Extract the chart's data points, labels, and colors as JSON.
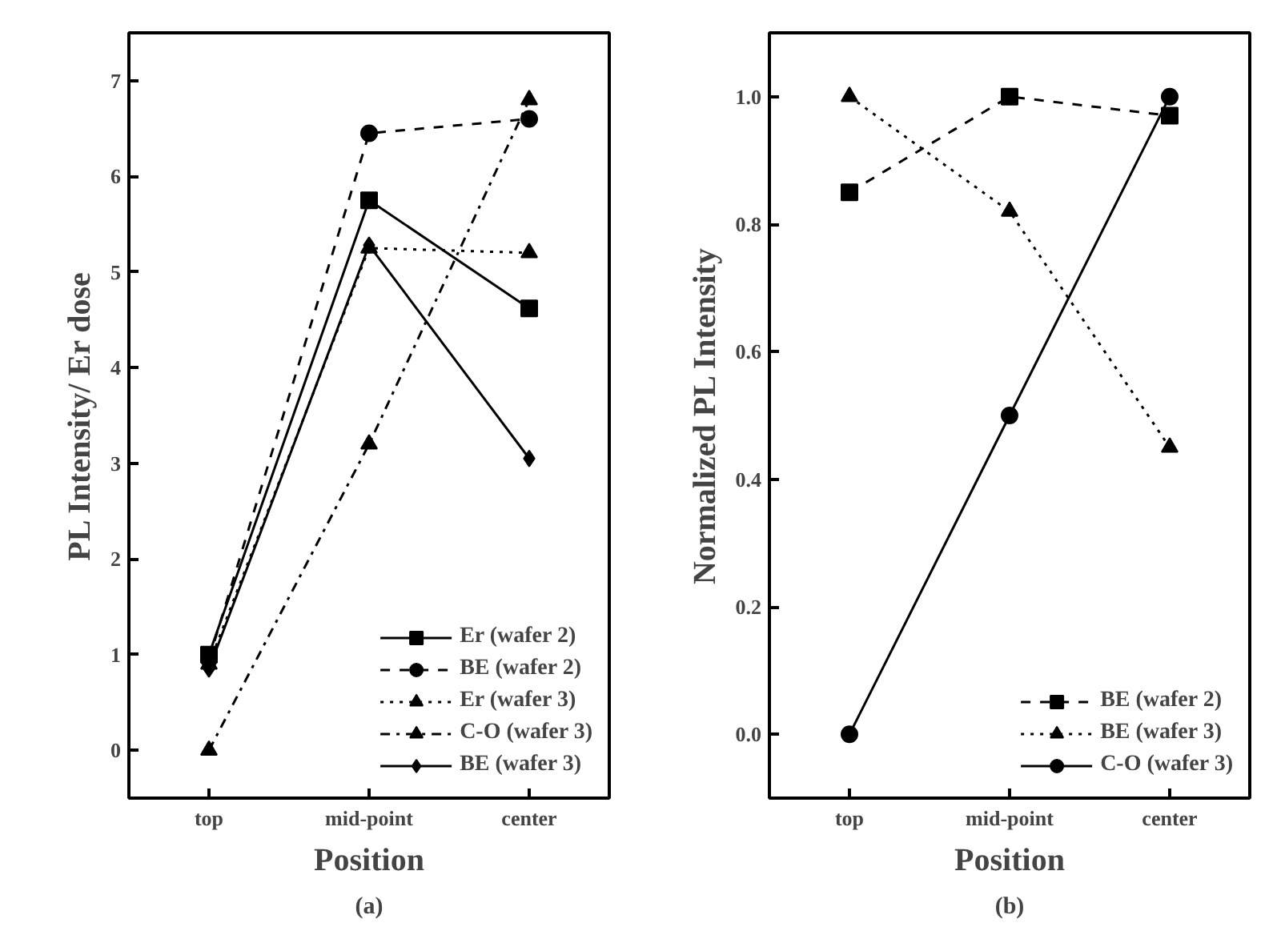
{
  "chart_data": [
    {
      "type": "line",
      "xlabel": "Position",
      "ylabel": "PL Intensity/ Er dose",
      "categories": [
        "top",
        "mid-point",
        "center"
      ],
      "ylim": [
        -0.5,
        7.5
      ],
      "yticks": [
        0,
        1,
        2,
        3,
        4,
        5,
        6,
        7
      ],
      "grid": false,
      "legend": "bottom right",
      "annotations": [
        "(a)"
      ],
      "series": [
        {
          "name": "Er (wafer 2)",
          "color": "#000000",
          "marker": "square",
          "line_style": "solid",
          "values": [
            1.0,
            5.75,
            4.62
          ]
        },
        {
          "name": "BE (wafer 2)",
          "color": "#000000",
          "marker": "circle",
          "line_style": "dashed",
          "values": [
            0.95,
            6.45,
            6.6
          ]
        },
        {
          "name": "Er (wafer 3)",
          "color": "#000000",
          "marker": "triangle",
          "line_style": "dotted",
          "values": [
            0.9,
            5.25,
            5.2
          ]
        },
        {
          "name": "C-O (wafer 3)",
          "color": "#000000",
          "marker": "triangle",
          "line_style": "dashdot",
          "values": [
            0.0,
            3.2,
            6.8
          ]
        },
        {
          "name": "BE (wafer 3)",
          "color": "#000000",
          "marker": "diamond",
          "line_style": "solid",
          "values": [
            0.85,
            5.28,
            3.05
          ]
        }
      ]
    },
    {
      "type": "line",
      "xlabel": "Position",
      "ylabel": "Normalized PL Intensity",
      "categories": [
        "top",
        "mid-point",
        "center"
      ],
      "ylim": [
        -0.1,
        1.1
      ],
      "yticks": [
        {
          "value": 0,
          "label": "0.0"
        },
        0.2,
        0.4,
        0.6,
        0.8,
        {
          "value": 1,
          "label": "1.0"
        }
      ],
      "grid": false,
      "legend": "bottom right",
      "annotations": [
        "(b)"
      ],
      "series": [
        {
          "name": "BE (wafer 2)",
          "color": "#000000",
          "marker": "square",
          "line_style": "dashed",
          "values": [
            0.85,
            1.0,
            0.97
          ]
        },
        {
          "name": "BE (wafer 3)",
          "color": "#000000",
          "marker": "triangle",
          "line_style": "dotted",
          "values": [
            1.0,
            0.82,
            0.45
          ]
        },
        {
          "name": "C-O (wafer 3)",
          "color": "#000000",
          "marker": "circle",
          "line_style": "solid",
          "values": [
            0.0,
            0.5,
            1.0
          ]
        }
      ]
    }
  ]
}
